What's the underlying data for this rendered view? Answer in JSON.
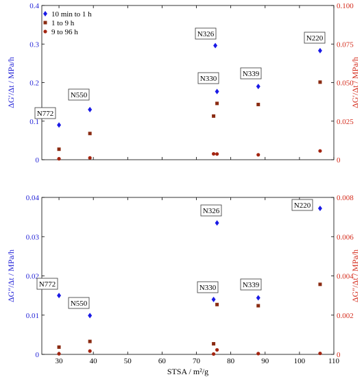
{
  "colors": {
    "left_axis": "#1f1fd6",
    "right_axis": "#d42a1a",
    "blue": "#1a1ae6",
    "brown": "#8a2b12",
    "red": "#a32410",
    "label_line": "#333333"
  },
  "legend": [
    {
      "label": "10 min to 1 h",
      "marker": "diamond",
      "color": "#1a1ae6"
    },
    {
      "label": "1 to 9 h",
      "marker": "square",
      "color": "#8a2b12"
    },
    {
      "label": "9 to 96 h",
      "marker": "circle",
      "color": "#a32410"
    }
  ],
  "chart_data": [
    {
      "type": "scatter",
      "title": "",
      "xlabel": "",
      "ylabel_left": "ΔG′/Δt / MPa/h",
      "ylabel_right": "ΔG′/Δt / MPa/h",
      "xlim": [
        25,
        110
      ],
      "ylim_left": [
        0,
        0.4
      ],
      "ylim_right": [
        0,
        0.1
      ],
      "x_ticks": [
        30,
        40,
        50,
        60,
        70,
        80,
        90,
        100,
        110
      ],
      "y_ticks_left": [
        "0",
        "0.1",
        "0.2",
        "0.3",
        "0.4"
      ],
      "y_ticks_right": [
        "0",
        "0.025",
        "0.050",
        "0.075",
        "0.100"
      ],
      "series": [
        {
          "name": "10 min to 1 h",
          "axis": "left",
          "points": [
            [
              30,
              0.09
            ],
            [
              39,
              0.13
            ],
            [
              75.5,
              0.296
            ],
            [
              76,
              0.177
            ],
            [
              88,
              0.19
            ],
            [
              106,
              0.283
            ]
          ]
        },
        {
          "name": "1 to 9 h",
          "axis": "right",
          "points": [
            [
              30,
              0.0068
            ],
            [
              39,
              0.017
            ],
            [
              75,
              0.0283
            ],
            [
              76,
              0.0365
            ],
            [
              88,
              0.0358
            ],
            [
              106,
              0.0503
            ]
          ]
        },
        {
          "name": "9 to 96 h",
          "axis": "right",
          "points": [
            [
              30,
              0.0006
            ],
            [
              39,
              0.0012
            ],
            [
              75,
              0.0038
            ],
            [
              76,
              0.0037
            ],
            [
              88,
              0.0032
            ],
            [
              106,
              0.0057
            ]
          ]
        }
      ],
      "annotations": [
        {
          "text": "N772",
          "x": 30
        },
        {
          "text": "N550",
          "x": 39
        },
        {
          "text": "N326",
          "x": 75.5
        },
        {
          "text": "N330",
          "x": 76
        },
        {
          "text": "N339",
          "x": 88
        },
        {
          "text": "N220",
          "x": 106
        }
      ]
    },
    {
      "type": "scatter",
      "title": "",
      "xlabel": "STSA / m²/g",
      "ylabel_left": "ΔG″/Δt / MPa/h",
      "ylabel_right": "ΔG″/Δt / MPa/h",
      "xlim": [
        25,
        110
      ],
      "ylim_left": [
        0,
        0.04
      ],
      "ylim_right": [
        0,
        0.008
      ],
      "x_ticks": [
        30,
        40,
        50,
        60,
        70,
        80,
        90,
        100,
        110
      ],
      "y_ticks_left": [
        "0",
        "0.01",
        "0.02",
        "0.03",
        "0.04"
      ],
      "y_ticks_right": [
        "0",
        "0.002",
        "0.004",
        "0.006",
        "0.008"
      ],
      "series": [
        {
          "name": "10 min to 1 h",
          "axis": "left",
          "points": [
            [
              30,
              0.015
            ],
            [
              39,
              0.0099
            ],
            [
              76,
              0.0335
            ],
            [
              75,
              0.014
            ],
            [
              88,
              0.0144
            ],
            [
              106,
              0.0372
            ]
          ]
        },
        {
          "name": "1 to 9 h",
          "axis": "right",
          "points": [
            [
              30,
              0.00037
            ],
            [
              39,
              0.00066
            ],
            [
              75,
              0.00054
            ],
            [
              76,
              0.00254
            ],
            [
              88,
              0.00248
            ],
            [
              106,
              0.00357
            ]
          ]
        },
        {
          "name": "9 to 96 h",
          "axis": "right",
          "points": [
            [
              30,
              3e-05
            ],
            [
              39,
              0.00017
            ],
            [
              75,
              2e-05
            ],
            [
              76,
              0.00023
            ],
            [
              88,
              4e-05
            ],
            [
              106,
              5e-05
            ]
          ]
        }
      ],
      "annotations": [
        {
          "text": "N772",
          "x": 30
        },
        {
          "text": "N550",
          "x": 39
        },
        {
          "text": "N326",
          "x": 76
        },
        {
          "text": "N330",
          "x": 75
        },
        {
          "text": "N339",
          "x": 88
        },
        {
          "text": "N220",
          "x": 106
        }
      ]
    }
  ]
}
